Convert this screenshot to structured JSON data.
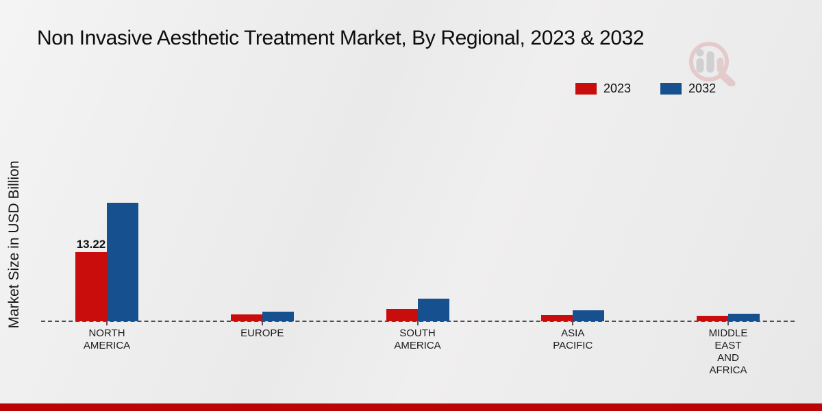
{
  "title": "Non Invasive Aesthetic Treatment Market, By Regional, 2023 & 2032",
  "watermark_icon": "magnifier-bar-chart-logo",
  "footer_bar_color": "#bb0505",
  "chart_data": {
    "type": "bar",
    "title": "Non Invasive Aesthetic Treatment Market, By Regional, 2023 & 2032",
    "xlabel": "",
    "ylabel": "Market Size in USD Billion",
    "categories": [
      "NORTH AMERICA",
      "EUROPE",
      "SOUTH AMERICA",
      "ASIA PACIFIC",
      "MIDDLE EAST AND AFRICA"
    ],
    "category_lines": [
      [
        "NORTH",
        "AMERICA"
      ],
      [
        "EUROPE"
      ],
      [
        "SOUTH",
        "AMERICA"
      ],
      [
        "ASIA",
        "PACIFIC"
      ],
      [
        "MIDDLE",
        "EAST",
        "AND",
        "AFRICA"
      ]
    ],
    "series": [
      {
        "name": "2023",
        "color": "#c90c0c",
        "values": [
          13.22,
          1.31,
          2.36,
          1.18,
          1.05
        ]
      },
      {
        "name": "2032",
        "color": "#16508e",
        "values": [
          22.64,
          1.83,
          4.32,
          2.09,
          1.44
        ]
      }
    ],
    "bar_labels": [
      {
        "series_index": 0,
        "category_index": 0,
        "text": "13.22"
      }
    ],
    "ylim": [
      0,
      24
    ],
    "grid": false,
    "baseline_style": "dashed",
    "legend_position": "top-right",
    "axis_ticks_visible": false
  }
}
